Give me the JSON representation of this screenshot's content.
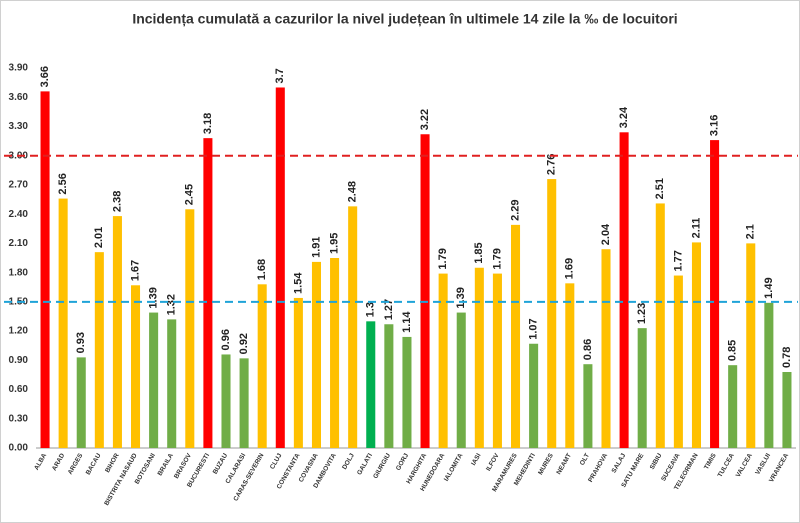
{
  "chart_data": {
    "type": "bar",
    "title": "Incidența cumulată a cazurilor la nivel județean în ultimele 14 zile la ‰ de locuitori",
    "categories": [
      "ALBA",
      "ARAD",
      "ARGES",
      "BACAU",
      "BIHOR",
      "BISTRITA NASAUD",
      "BOTOSANI",
      "BRAILA",
      "BRASOV",
      "BUCURESTI",
      "BUZAU",
      "CALARASI",
      "CARAS-SEVERIN",
      "CLUJ",
      "CONSTANTA",
      "COVASNA",
      "DAMBOVITA",
      "DOLJ",
      "GALATI",
      "GIURGIU",
      "GORJ",
      "HARGHITA",
      "HUNEDOARA",
      "IALOMITA",
      "IASI",
      "ILFOV",
      "MARAMURES",
      "MEHEDINTI",
      "MURES",
      "NEAMT",
      "OLT",
      "PRAHOVA",
      "SALAJ",
      "SATU MARE",
      "SIBIU",
      "SUCEAVA",
      "TELEORMAN",
      "TIMIS",
      "TULCEA",
      "VALCEA",
      "VASLUI",
      "VRANCEA"
    ],
    "values": [
      3.66,
      2.56,
      0.93,
      2.01,
      2.38,
      1.67,
      1.39,
      1.32,
      2.45,
      3.18,
      0.96,
      0.92,
      1.68,
      3.7,
      1.54,
      1.91,
      1.95,
      2.48,
      1.3,
      1.27,
      1.14,
      3.22,
      1.79,
      1.39,
      1.85,
      1.79,
      2.29,
      1.07,
      2.76,
      1.69,
      0.86,
      2.04,
      3.24,
      1.23,
      2.51,
      1.77,
      2.11,
      3.16,
      0.85,
      2.1,
      1.49,
      0.78
    ],
    "colors": [
      "#ff0000",
      "#ffc000",
      "#70ad47",
      "#ffc000",
      "#ffc000",
      "#ffc000",
      "#70ad47",
      "#70ad47",
      "#ffc000",
      "#ff0000",
      "#70ad47",
      "#70ad47",
      "#ffc000",
      "#ff0000",
      "#ffc000",
      "#ffc000",
      "#ffc000",
      "#ffc000",
      "#00b050",
      "#70ad47",
      "#70ad47",
      "#ff0000",
      "#ffc000",
      "#70ad47",
      "#ffc000",
      "#ffc000",
      "#ffc000",
      "#70ad47",
      "#ffc000",
      "#ffc000",
      "#70ad47",
      "#ffc000",
      "#ff0000",
      "#70ad47",
      "#ffc000",
      "#ffc000",
      "#ffc000",
      "#ff0000",
      "#70ad47",
      "#ffc000",
      "#70ad47",
      "#70ad47"
    ],
    "ylim": [
      0,
      3.9
    ],
    "yticks": [
      {
        "value": 0,
        "label": "0.00"
      },
      {
        "value": 0.3,
        "label": "0.30"
      },
      {
        "value": 0.6,
        "label": "0.60"
      },
      {
        "value": 0.9,
        "label": "0.90"
      },
      {
        "value": 1.2,
        "label": "1.20"
      },
      {
        "value": 1.5,
        "label": "1.50"
      },
      {
        "value": 1.8,
        "label": "1.80"
      },
      {
        "value": 2.1,
        "label": "2.10"
      },
      {
        "value": 2.4,
        "label": "2.40"
      },
      {
        "value": 2.7,
        "label": "2.70"
      },
      {
        "value": 3,
        "label": "3.00"
      },
      {
        "value": 3.3,
        "label": "3.30"
      },
      {
        "value": 3.6,
        "label": "3.60"
      },
      {
        "value": 3.9,
        "label": "3.90"
      }
    ],
    "reference_lines": [
      {
        "value": 3,
        "color": "#e02020"
      },
      {
        "value": 1.5,
        "color": "#1fa3d8"
      }
    ]
  }
}
